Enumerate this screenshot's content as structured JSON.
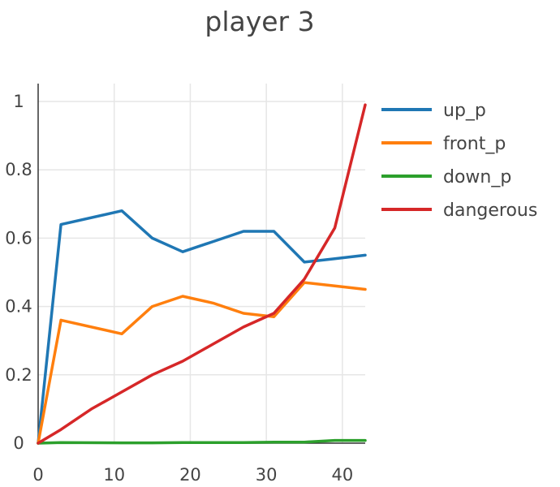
{
  "chart_data": {
    "type": "line",
    "title": "player 3",
    "xlabel": "",
    "ylabel": "",
    "xlim": [
      0,
      43
    ],
    "ylim": [
      0,
      1
    ],
    "x_ticks": [
      0,
      10,
      20,
      30,
      40
    ],
    "y_ticks": [
      0,
      0.2,
      0.4,
      0.6,
      0.8,
      1
    ],
    "x_tick_labels": [
      "0",
      "10",
      "20",
      "30",
      "40"
    ],
    "y_tick_labels": [
      "0",
      "0.2",
      "0.4",
      "0.6",
      "0.8",
      "1"
    ],
    "grid": true,
    "legend_position": "top-right",
    "series": [
      {
        "name": "up_p",
        "color": "#1f77b4",
        "x": [
          0,
          3,
          11,
          15,
          19,
          23,
          27,
          31,
          35,
          39,
          43
        ],
        "y": [
          0,
          0.64,
          0.68,
          0.6,
          0.56,
          0.59,
          0.62,
          0.62,
          0.53,
          0.54,
          0.55
        ]
      },
      {
        "name": "front_p",
        "color": "#ff7f0e",
        "x": [
          0,
          3,
          11,
          15,
          19,
          23,
          27,
          31,
          35,
          39,
          43
        ],
        "y": [
          0,
          0.36,
          0.32,
          0.4,
          0.43,
          0.41,
          0.38,
          0.37,
          0.47,
          0.46,
          0.45
        ]
      },
      {
        "name": "down_p",
        "color": "#2ca02c",
        "x": [
          0,
          3,
          11,
          15,
          19,
          23,
          27,
          31,
          35,
          39,
          43
        ],
        "y": [
          0,
          0.002,
          0.001,
          0.001,
          0.002,
          0.002,
          0.002,
          0.003,
          0.003,
          0.008,
          0.008
        ]
      },
      {
        "name": "dangerous",
        "color": "#d62728",
        "x": [
          0,
          3,
          7,
          11,
          15,
          19,
          23,
          27,
          31,
          35,
          39,
          43
        ],
        "y": [
          0,
          0.04,
          0.1,
          0.15,
          0.2,
          0.24,
          0.29,
          0.34,
          0.38,
          0.48,
          0.63,
          0.99
        ]
      }
    ]
  }
}
